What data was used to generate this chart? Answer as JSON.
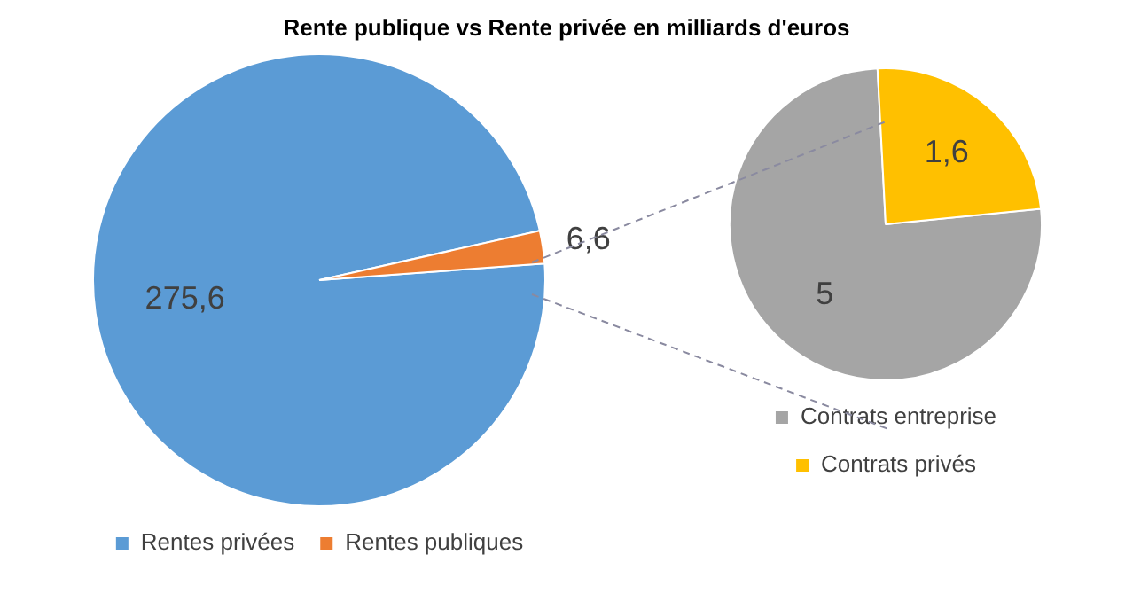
{
  "chart_data": [
    {
      "type": "pie",
      "title": "Rente publique vs Rente privée en milliards d'euros",
      "categories": [
        "Rentes privées",
        "Rentes publiques"
      ],
      "values": [
        275.6,
        6.6
      ],
      "colors": [
        "#5b9bd5",
        "#ed7d31"
      ],
      "value_labels": [
        "275,6",
        "6,6"
      ],
      "legend": "bottom"
    },
    {
      "type": "pie",
      "categories": [
        "Contrats entreprise",
        "Contrats privés"
      ],
      "values": [
        5,
        1.6
      ],
      "colors": [
        "#a5a5a5",
        "#ffc000"
      ],
      "value_labels": [
        "5",
        "1,6"
      ],
      "legend": "bottom"
    }
  ]
}
